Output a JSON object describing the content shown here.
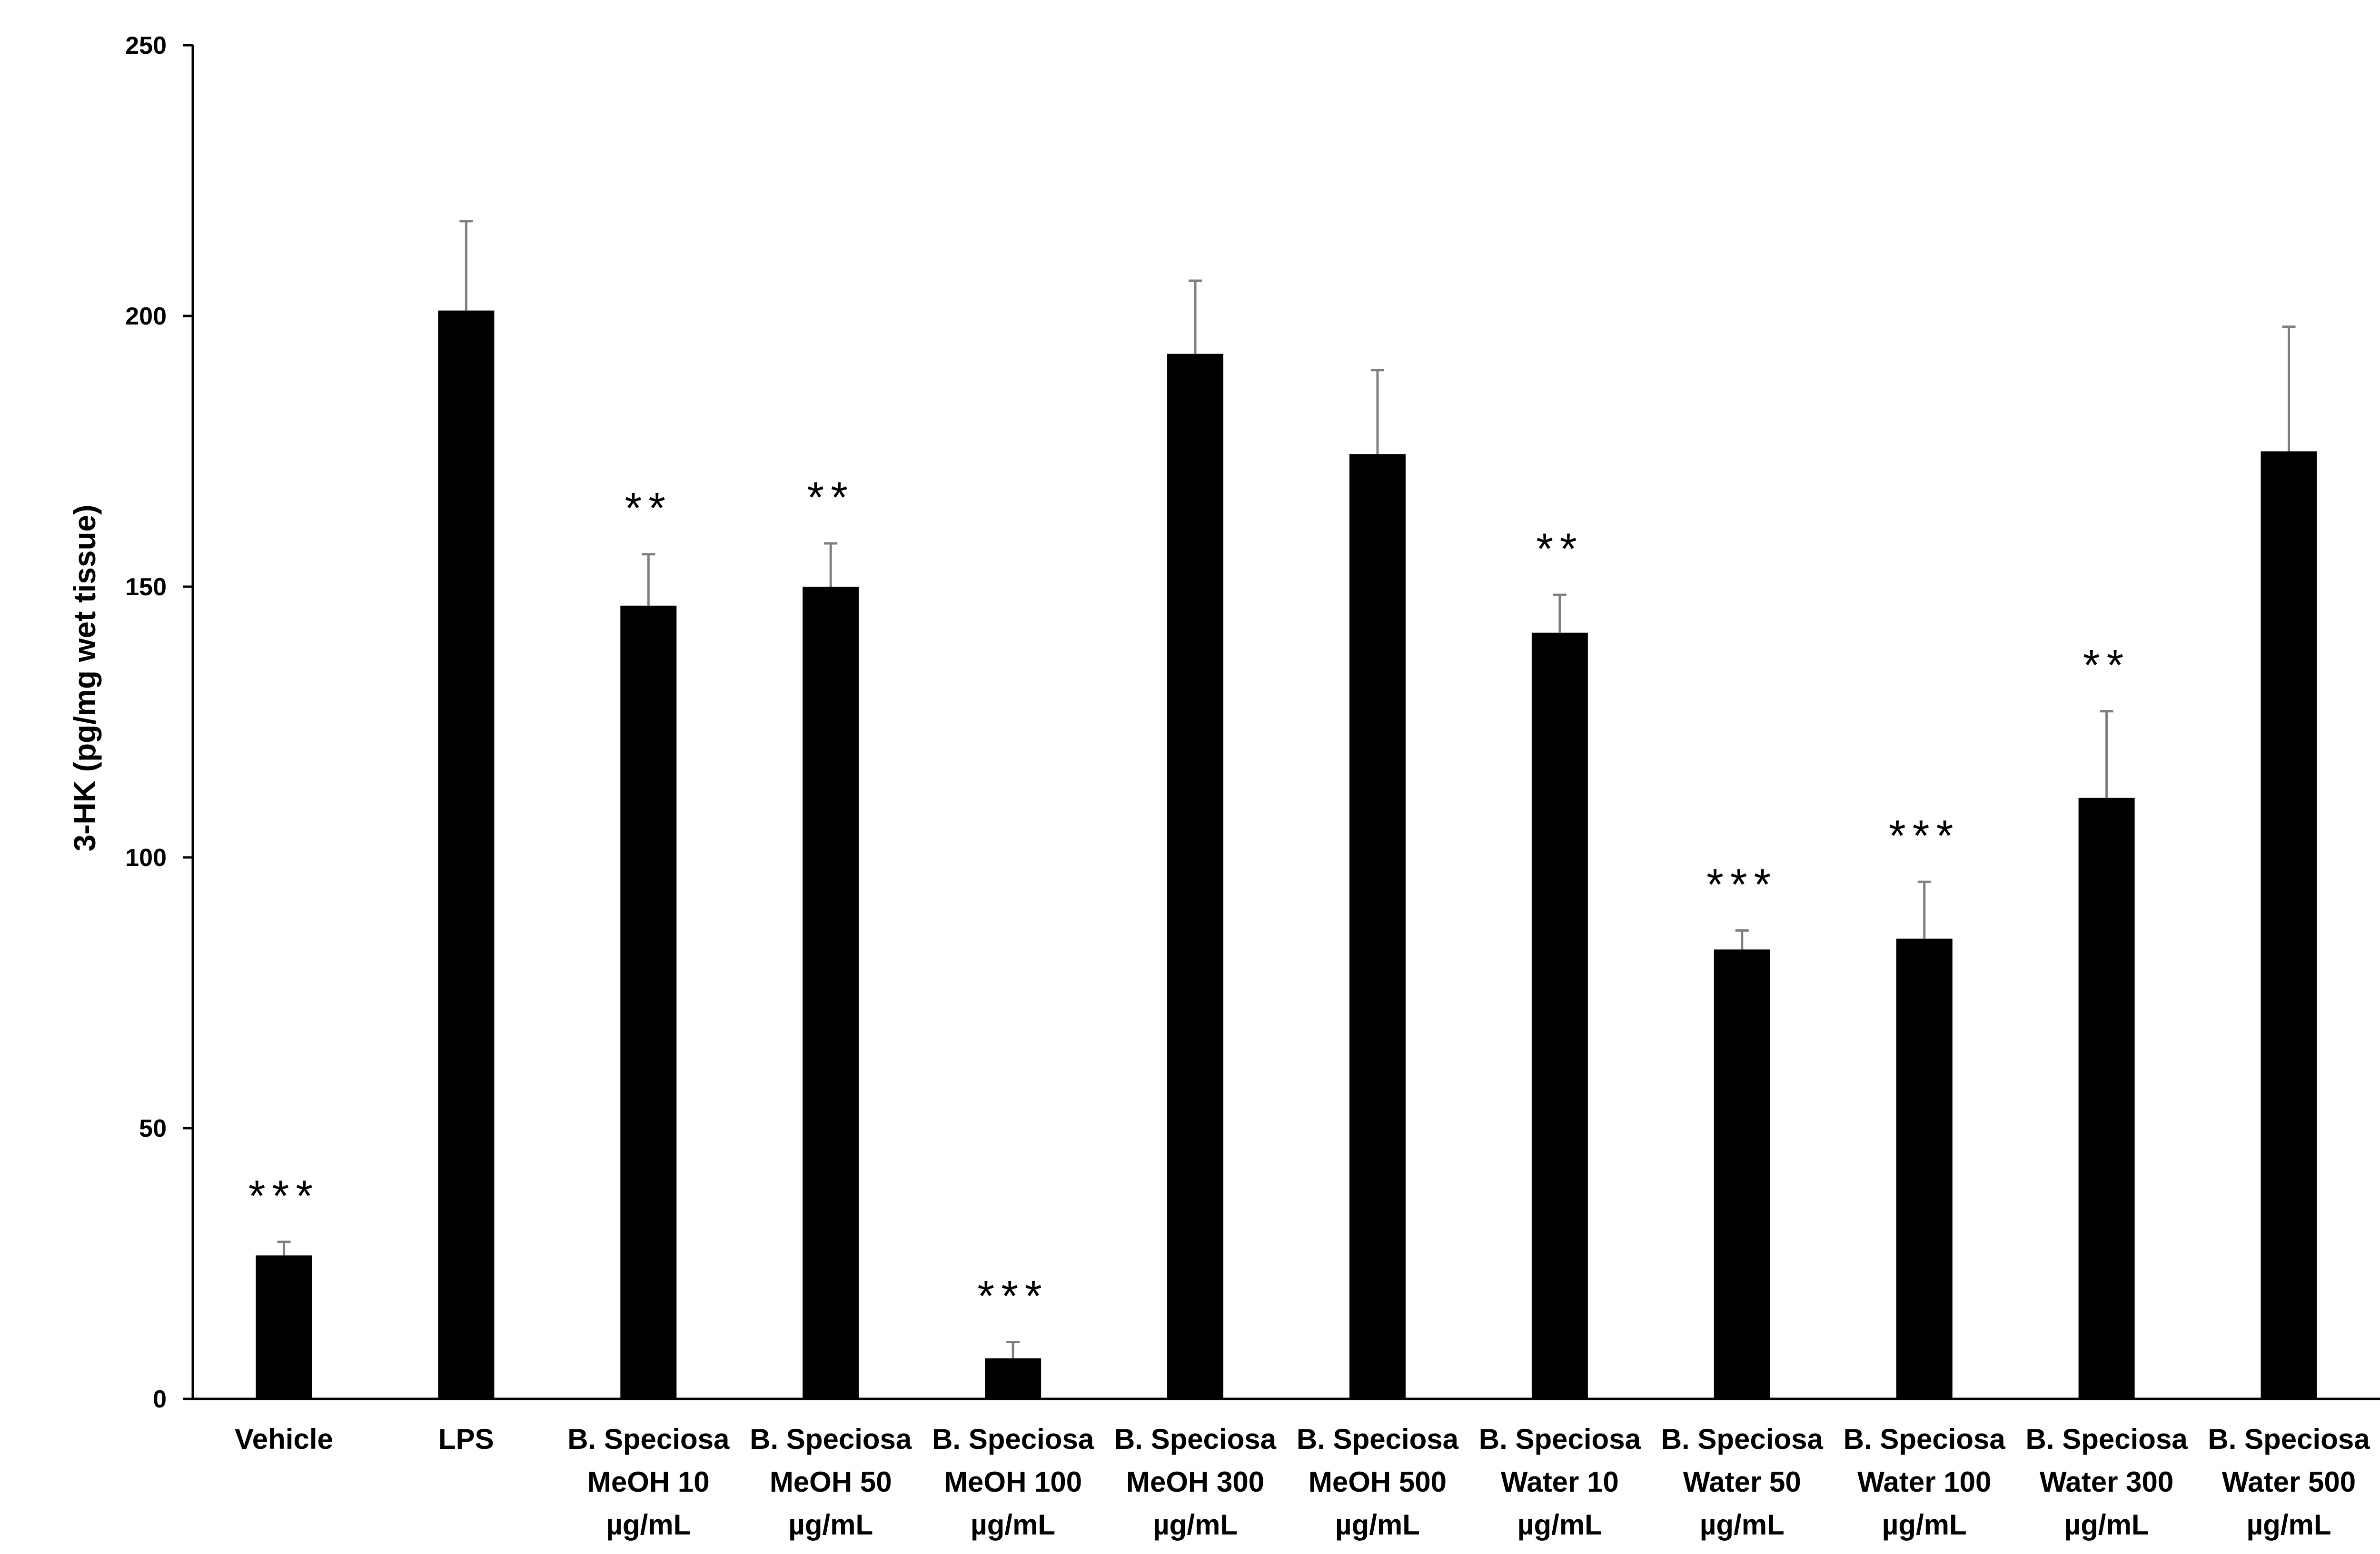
{
  "chart_data": {
    "type": "bar",
    "title": "",
    "xlabel": "",
    "ylabel": "3-HK (pg/mg wet tissue)",
    "ylim": [
      0,
      250
    ],
    "yticks": [
      0,
      50,
      100,
      150,
      200,
      250
    ],
    "grid": false,
    "legend": "none",
    "bar_color": "#000000",
    "error_color": "#7f7f7f",
    "categories": [
      [
        "Vehicle"
      ],
      [
        "LPS"
      ],
      [
        "B. Speciosa",
        "MeOH 10",
        "µg/mL"
      ],
      [
        "B. Speciosa",
        "MeOH 50",
        "µg/mL"
      ],
      [
        "B. Speciosa",
        "MeOH 100",
        "µg/mL"
      ],
      [
        "B. Speciosa",
        "MeOH 300",
        "µg/mL"
      ],
      [
        "B. Speciosa",
        "MeOH 500",
        "µg/mL"
      ],
      [
        "B. Speciosa",
        "Water 10",
        "µg/mL"
      ],
      [
        "B. Speciosa",
        "Water 50",
        "µg/mL"
      ],
      [
        "B. Speciosa",
        "Water 100",
        "µg/mL"
      ],
      [
        "B. Speciosa",
        "Water 300",
        "µg/mL"
      ],
      [
        "B. Speciosa",
        "Water 500",
        "µg/mL"
      ]
    ],
    "values": [
      26.5,
      201,
      146.5,
      150,
      7.5,
      193,
      174.5,
      141.5,
      83,
      85,
      111,
      175
    ],
    "errors": [
      2.5,
      16.5,
      9.5,
      8,
      3,
      13.5,
      15.5,
      7,
      3.5,
      10.5,
      16,
      23
    ],
    "significance": [
      "***",
      "",
      "**",
      "**",
      "***",
      "",
      "",
      "**",
      "***",
      "***",
      "**",
      ""
    ]
  }
}
